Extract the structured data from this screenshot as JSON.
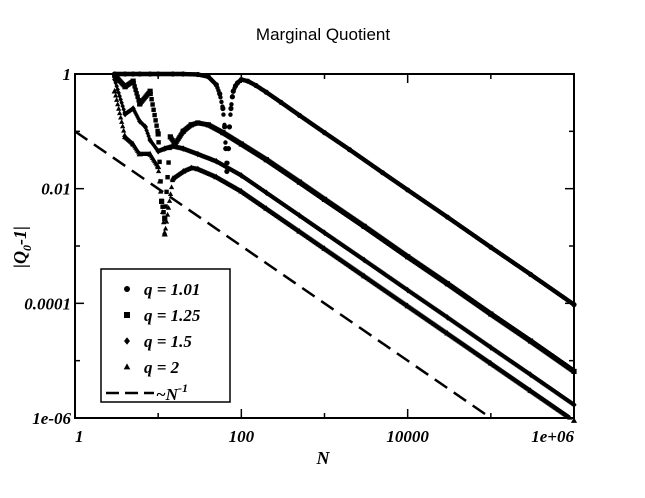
{
  "chart_data": {
    "type": "scatter",
    "title": "Marginal Quotient",
    "xlabel": "N",
    "ylabel": "|Q_0-1|",
    "x_scale": "log",
    "y_scale": "log",
    "xlim": [
      1,
      1000000
    ],
    "ylim": [
      1e-06,
      1
    ],
    "x_ticks": [
      {
        "value": 1,
        "label": "1"
      },
      {
        "value": 100,
        "label": "100"
      },
      {
        "value": 10000,
        "label": "10000"
      },
      {
        "value": 1000000,
        "label": "1e+06"
      }
    ],
    "y_ticks": [
      {
        "value": 1e-06,
        "label": "1e-06"
      },
      {
        "value": 0.0001,
        "label": "0.0001"
      },
      {
        "value": 0.01,
        "label": "0.01"
      },
      {
        "value": 1,
        "label": "1"
      }
    ],
    "grid": false,
    "legend_position": "bottom-left",
    "series": [
      {
        "name": "q = 1.01",
        "marker": "circle",
        "x": [
          3,
          4,
          5,
          6,
          8,
          10,
          15,
          20,
          30,
          40,
          50,
          55,
          60,
          63,
          65,
          67,
          70,
          72,
          75,
          78,
          80,
          85,
          90,
          100,
          120,
          150,
          200,
          300,
          500,
          1000,
          2000,
          5000,
          10000,
          30000,
          100000,
          300000,
          1000000
        ],
        "y": [
          1.0,
          1.0,
          1.0,
          1.0,
          1.0,
          1.0,
          1.0,
          1.0,
          0.98,
          0.9,
          0.65,
          0.45,
          0.25,
          0.12,
          0.05,
          0.02,
          0.05,
          0.12,
          0.25,
          0.4,
          0.5,
          0.62,
          0.7,
          0.8,
          0.75,
          0.63,
          0.48,
          0.32,
          0.19,
          0.095,
          0.048,
          0.019,
          0.0095,
          0.0032,
          0.00095,
          0.00032,
          9.5e-05
        ]
      },
      {
        "name": "q = 1.25",
        "marker": "square",
        "x": [
          3,
          4,
          5,
          6,
          8,
          10,
          11,
          12,
          14,
          16,
          20,
          25,
          30,
          40,
          60,
          100,
          200,
          500,
          1000,
          3000,
          10000,
          30000,
          100000,
          300000,
          1000000
        ],
        "y": [
          0.95,
          0.6,
          0.75,
          0.3,
          0.5,
          0.09,
          0.006,
          0.003,
          0.08,
          0.06,
          0.1,
          0.13,
          0.14,
          0.13,
          0.095,
          0.06,
          0.032,
          0.013,
          0.0065,
          0.0022,
          0.00065,
          0.00022,
          6.5e-05,
          2.2e-05,
          6.5e-06
        ]
      },
      {
        "name": "q = 1.5",
        "marker": "diamond",
        "x": [
          3,
          4,
          5,
          6,
          7,
          8,
          10,
          12,
          15,
          20,
          30,
          50,
          100,
          200,
          500,
          1000,
          3000,
          10000,
          30000,
          100000,
          300000,
          1000000
        ],
        "y": [
          0.8,
          0.2,
          0.25,
          0.15,
          0.12,
          0.07,
          0.045,
          0.05,
          0.055,
          0.05,
          0.04,
          0.03,
          0.017,
          0.0085,
          0.0034,
          0.0017,
          0.00057,
          0.00017,
          5.7e-05,
          1.7e-05,
          5.7e-06,
          1.7e-06
        ]
      },
      {
        "name": "q = 2",
        "marker": "triangle",
        "x": [
          3,
          4,
          5,
          6,
          8,
          10,
          12,
          15,
          20,
          25,
          30,
          50,
          100,
          200,
          500,
          1000,
          3000,
          10000,
          30000,
          100000,
          300000,
          1000000
        ],
        "y": [
          0.5,
          0.08,
          0.06,
          0.04,
          0.04,
          0.024,
          0.0016,
          0.015,
          0.02,
          0.023,
          0.022,
          0.016,
          0.009,
          0.0045,
          0.0018,
          0.0009,
          0.0003,
          9e-05,
          3e-05,
          9e-06,
          3e-06,
          9e-07
        ]
      },
      {
        "name": "~N",
        "name_superscript": "-1",
        "marker": "dashed-line",
        "x": [
          1,
          100000
        ],
        "y": [
          0.1,
          1e-06
        ]
      }
    ]
  }
}
